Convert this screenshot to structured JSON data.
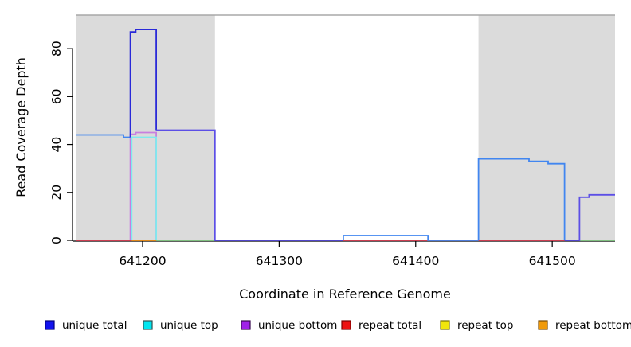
{
  "axes": {
    "x_label": "Coordinate in Reference Genome",
    "y_label": "Read Coverage Depth",
    "x_ticks": [
      "641200",
      "641300",
      "641400",
      "641500"
    ],
    "y_ticks": [
      "0",
      "20",
      "40",
      "60",
      "80"
    ]
  },
  "legend": {
    "items": [
      {
        "label": "unique total",
        "color": "#1212EE",
        "border": "#000080"
      },
      {
        "label": "unique top",
        "color": "#00E6F0",
        "border": "#2F4F4F"
      },
      {
        "label": "unique bottom",
        "color": "#A020E8",
        "border": "#3A0A50"
      },
      {
        "label": "repeat total",
        "color": "#EE1111",
        "border": "#7A0000"
      },
      {
        "label": "repeat top",
        "color": "#F2E50C",
        "border": "#7A7000"
      },
      {
        "label": "repeat bottom",
        "color": "#F09A0A",
        "border": "#7A4A00"
      }
    ]
  },
  "chart_data": {
    "type": "line",
    "style": "step",
    "title": "",
    "xlabel": "Coordinate in Reference Genome",
    "ylabel": "Read Coverage Depth",
    "xlim": [
      641151,
      641546
    ],
    "ylim": [
      0,
      94
    ],
    "x_tick_values": [
      641200,
      641300,
      641400,
      641500
    ],
    "y_tick_values": [
      0,
      20,
      40,
      60,
      80
    ],
    "grid": false,
    "legend_position": "bottom",
    "shade_color": "#DBDBDB",
    "shade_top_line_color": "#A8A8A8",
    "shaded_regions": [
      [
        641151,
        641253
      ],
      [
        641446,
        641546
      ]
    ],
    "series": [
      {
        "name": "unique total",
        "color": "#1212EE",
        "steps": [
          [
            641151,
            44
          ],
          [
            641186,
            43
          ],
          [
            641191,
            87
          ],
          [
            641195,
            88
          ],
          [
            641210,
            46
          ],
          [
            641253,
            0
          ],
          [
            641347,
            2
          ],
          [
            641409,
            0
          ],
          [
            641446,
            34
          ],
          [
            641483,
            33
          ],
          [
            641497,
            32
          ],
          [
            641509,
            0
          ],
          [
            641520,
            18
          ],
          [
            641527,
            19
          ],
          [
            641546,
            19
          ]
        ]
      },
      {
        "name": "unique top",
        "color": "#00E6F0",
        "steps": [
          [
            641151,
            0
          ],
          [
            641192,
            43
          ],
          [
            641210,
            0
          ],
          [
            641546,
            0
          ]
        ]
      },
      {
        "name": "unique bottom",
        "color": "#A020E8",
        "steps": [
          [
            641151,
            0
          ],
          [
            641191,
            44
          ],
          [
            641195,
            45
          ],
          [
            641210,
            0
          ],
          [
            641546,
            0
          ]
        ]
      },
      {
        "name": "repeat total",
        "color": "#EE1111",
        "steps": [
          [
            641151,
            0
          ],
          [
            641546,
            0
          ]
        ]
      },
      {
        "name": "repeat top",
        "color": "#F2E50C",
        "steps": [
          [
            641151,
            0
          ],
          [
            641546,
            0
          ]
        ]
      },
      {
        "name": "repeat bottom",
        "color": "#F09A0A",
        "steps": [
          [
            641151,
            0
          ],
          [
            641546,
            0
          ]
        ]
      }
    ],
    "render_segments": [
      {
        "name": "repeat-total-baseline-left",
        "color": "#E8475C",
        "pts": [
          [
            641151,
            0
          ],
          [
            641192,
            0
          ]
        ]
      },
      {
        "name": "repeat-total-baseline-mid",
        "color": "#E8475C",
        "pts": [
          [
            641347,
            0
          ],
          [
            641509,
            0
          ]
        ]
      },
      {
        "name": "baseline-green-left",
        "color": "#93DB93",
        "pts": [
          [
            641210,
            0
          ],
          [
            641253,
            0
          ]
        ]
      },
      {
        "name": "baseline-green-right",
        "color": "#93DB93",
        "pts": [
          [
            641520,
            0
          ],
          [
            641546,
            0
          ]
        ]
      },
      {
        "name": "repeat-bottom-baseline",
        "color": "#FF9C1E",
        "pts": [
          [
            641192,
            0
          ],
          [
            641210,
            0
          ]
        ]
      },
      {
        "name": "unique-bottom-peak",
        "color": "#C77FDF",
        "pts": [
          [
            641191,
            0
          ],
          [
            641191,
            44.3
          ],
          [
            641195,
            44.3
          ],
          [
            641195,
            45
          ],
          [
            641210,
            45
          ],
          [
            641210,
            0
          ]
        ]
      },
      {
        "name": "unique-top-peak",
        "color": "#7EEAEE",
        "pts": [
          [
            641192,
            0
          ],
          [
            641192,
            43
          ],
          [
            641210,
            43
          ],
          [
            641210,
            0
          ]
        ]
      },
      {
        "name": "unique-total-left",
        "color": "#4186F0",
        "pts": [
          [
            641151,
            44
          ],
          [
            641186,
            44
          ],
          [
            641186,
            43
          ],
          [
            641191,
            43
          ]
        ]
      },
      {
        "name": "unique-total-peak",
        "color": "#2A2AD8",
        "pts": [
          [
            641191,
            43
          ],
          [
            641191,
            87
          ],
          [
            641195,
            87
          ],
          [
            641195,
            88
          ],
          [
            641210,
            88
          ],
          [
            641210,
            46
          ]
        ]
      },
      {
        "name": "unique-total-shoulder",
        "color": "#5C4FE6",
        "pts": [
          [
            641210,
            46
          ],
          [
            641253,
            46
          ],
          [
            641253,
            0
          ],
          [
            641347,
            0
          ]
        ]
      },
      {
        "name": "unique-total-bump",
        "color": "#4186F0",
        "pts": [
          [
            641347,
            0
          ],
          [
            641347,
            2
          ],
          [
            641409,
            2
          ],
          [
            641409,
            0
          ],
          [
            641446,
            0
          ]
        ]
      },
      {
        "name": "unique-total-right-hump",
        "color": "#4186F0",
        "pts": [
          [
            641446,
            0
          ],
          [
            641446,
            34
          ],
          [
            641483,
            34
          ],
          [
            641483,
            33
          ],
          [
            641497,
            33
          ],
          [
            641497,
            32
          ],
          [
            641509,
            32
          ],
          [
            641509,
            0
          ]
        ]
      },
      {
        "name": "unique-total-right-tail",
        "color": "#5C4FE6",
        "pts": [
          [
            641509,
            0
          ],
          [
            641520,
            0
          ],
          [
            641520,
            18
          ],
          [
            641527,
            18
          ],
          [
            641527,
            19
          ],
          [
            641546,
            19
          ]
        ]
      }
    ]
  }
}
